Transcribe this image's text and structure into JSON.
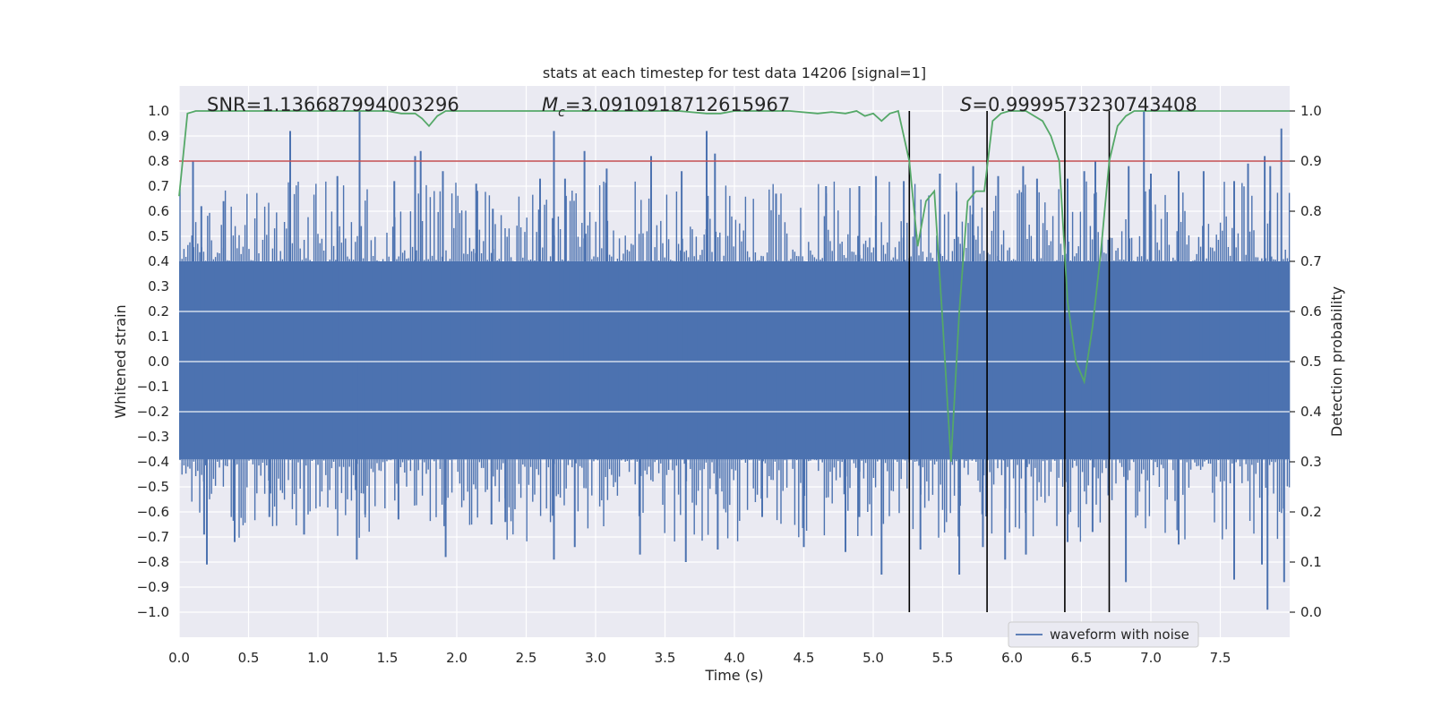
{
  "chart_data": {
    "type": "line",
    "title": "stats at each timestep for test data 14206 [signal=1]",
    "xlabel": "Time (s)",
    "ylabel": "Whitened strain",
    "y2label": "Detection probability",
    "xlim": [
      0.0,
      8.0
    ],
    "ylim": [
      -1.1,
      1.1
    ],
    "y2lim": [
      -0.05,
      1.05
    ],
    "xticks": [
      "0.0",
      "0.5",
      "1.0",
      "1.5",
      "2.0",
      "2.5",
      "3.0",
      "3.5",
      "4.0",
      "4.5",
      "5.0",
      "5.5",
      "6.0",
      "6.5",
      "7.0",
      "7.5"
    ],
    "yticks": [
      "1.0",
      "0.9",
      "0.8",
      "0.7",
      "0.6",
      "0.5",
      "0.4",
      "0.3",
      "0.2",
      "0.1",
      "0.0",
      "−0.1",
      "−0.2",
      "−0.3",
      "−0.4",
      "−0.5",
      "−0.6",
      "−0.7",
      "−0.8",
      "−0.9",
      "−1.0"
    ],
    "y2ticks": [
      "1.0",
      "0.9",
      "0.8",
      "0.7",
      "0.6",
      "0.5",
      "0.4",
      "0.3",
      "0.2",
      "0.1",
      "0.0"
    ],
    "grid": true,
    "legend": {
      "entries": [
        "waveform with noise"
      ],
      "placement": "bottom-right"
    },
    "annotations": {
      "snr": "SNR=1.136687994003296",
      "mc_symbol": "M",
      "mc_sub": "c",
      "mc_value": "=3.0910918712615967",
      "s_symbol": "S",
      "s_value": "=0.9999573230743408"
    },
    "threshold": {
      "y": 0.8,
      "color": "#c44e52"
    },
    "vlines_x": [
      5.26,
      5.82,
      6.38,
      6.7
    ],
    "series": [
      {
        "name": "waveform with noise",
        "color": "#4c72b0",
        "band": {
          "upper": 0.4,
          "lower": -0.39
        },
        "peaks_x": [
          0.1,
          0.16,
          0.32,
          0.8,
          1.14,
          1.3,
          1.55,
          1.7,
          1.74,
          1.9,
          2.14,
          2.26,
          2.6,
          2.7,
          2.78,
          2.92,
          3.08,
          3.4,
          3.62,
          3.8,
          3.86,
          4.3,
          4.66,
          4.9,
          5.02,
          5.22,
          5.3,
          5.48,
          5.6,
          5.72,
          5.9,
          6.08,
          6.18,
          6.4,
          6.52,
          6.6,
          6.84,
          6.95,
          7.0,
          7.2,
          7.38,
          7.6,
          7.7,
          7.82,
          7.86,
          7.94
        ],
        "peaks_y": [
          0.8,
          0.62,
          0.64,
          0.92,
          0.74,
          1.0,
          0.72,
          0.82,
          0.84,
          0.76,
          0.71,
          0.61,
          0.73,
          0.92,
          0.73,
          0.84,
          0.77,
          0.82,
          0.76,
          0.92,
          0.83,
          0.67,
          0.7,
          0.7,
          0.74,
          0.72,
          0.6,
          0.75,
          0.68,
          0.78,
          0.74,
          0.78,
          0.73,
          0.73,
          0.76,
          0.8,
          0.78,
          1.0,
          0.75,
          0.76,
          0.76,
          0.72,
          0.79,
          0.82,
          0.78,
          0.93
        ],
        "troughs_x": [
          0.18,
          0.2,
          0.4,
          0.65,
          0.9,
          1.28,
          1.34,
          1.58,
          1.92,
          2.25,
          2.35,
          2.7,
          2.85,
          3.32,
          3.65,
          3.88,
          4.2,
          4.5,
          4.8,
          4.9,
          5.06,
          5.34,
          5.62,
          5.79,
          5.95,
          6.1,
          6.4,
          6.58,
          6.82,
          7.2,
          7.6,
          7.8,
          7.84,
          7.96
        ],
        "troughs_y": [
          -0.69,
          -0.81,
          -0.72,
          -0.62,
          -0.69,
          -0.79,
          -0.61,
          -0.63,
          -0.78,
          -0.65,
          -0.64,
          -0.79,
          -0.74,
          -0.77,
          -0.8,
          -0.75,
          -0.62,
          -0.74,
          -0.76,
          -0.62,
          -0.85,
          -0.75,
          -0.85,
          -0.74,
          -0.79,
          -0.77,
          -0.72,
          -0.68,
          -0.88,
          -0.73,
          -0.87,
          -0.81,
          -0.99,
          -0.88
        ]
      },
      {
        "name": "detection probability",
        "color": "#55a868",
        "x": [
          0.0,
          0.06,
          0.12,
          0.2,
          0.3,
          0.4,
          0.5,
          0.6,
          0.7,
          0.8,
          0.9,
          1.0,
          1.1,
          1.2,
          1.3,
          1.4,
          1.5,
          1.6,
          1.7,
          1.75,
          1.8,
          1.86,
          1.92,
          2.0,
          2.2,
          2.4,
          2.6,
          2.8,
          3.0,
          3.2,
          3.4,
          3.6,
          3.8,
          3.9,
          4.0,
          4.2,
          4.4,
          4.6,
          4.7,
          4.8,
          4.88,
          4.94,
          5.0,
          5.06,
          5.12,
          5.18,
          5.26,
          5.32,
          5.38,
          5.44,
          5.5,
          5.56,
          5.62,
          5.68,
          5.74,
          5.8,
          5.86,
          5.92,
          5.98,
          6.04,
          6.1,
          6.16,
          6.22,
          6.28,
          6.34,
          6.4,
          6.46,
          6.52,
          6.58,
          6.64,
          6.7,
          6.76,
          6.82,
          6.88,
          6.94,
          7.0,
          7.2,
          7.4,
          7.6,
          7.8,
          8.0
        ],
        "values": [
          0.83,
          0.995,
          1.0,
          1.0,
          1.0,
          1.0,
          1.0,
          1.0,
          1.0,
          1.0,
          1.0,
          1.0,
          1.0,
          1.0,
          1.0,
          1.0,
          1.0,
          0.995,
          0.995,
          0.985,
          0.97,
          0.99,
          1.0,
          1.0,
          1.0,
          1.0,
          1.0,
          1.0,
          1.0,
          1.0,
          1.0,
          1.0,
          0.995,
          0.995,
          1.0,
          1.0,
          1.0,
          0.995,
          0.998,
          0.995,
          1.0,
          0.99,
          0.995,
          0.98,
          0.995,
          1.0,
          0.9,
          0.73,
          0.82,
          0.84,
          0.58,
          0.3,
          0.6,
          0.82,
          0.84,
          0.84,
          0.98,
          0.995,
          1.0,
          1.0,
          1.0,
          0.99,
          0.98,
          0.95,
          0.9,
          0.62,
          0.5,
          0.46,
          0.57,
          0.72,
          0.9,
          0.97,
          0.99,
          1.0,
          1.0,
          1.0,
          1.0,
          1.0,
          1.0,
          1.0,
          1.0
        ]
      }
    ]
  }
}
